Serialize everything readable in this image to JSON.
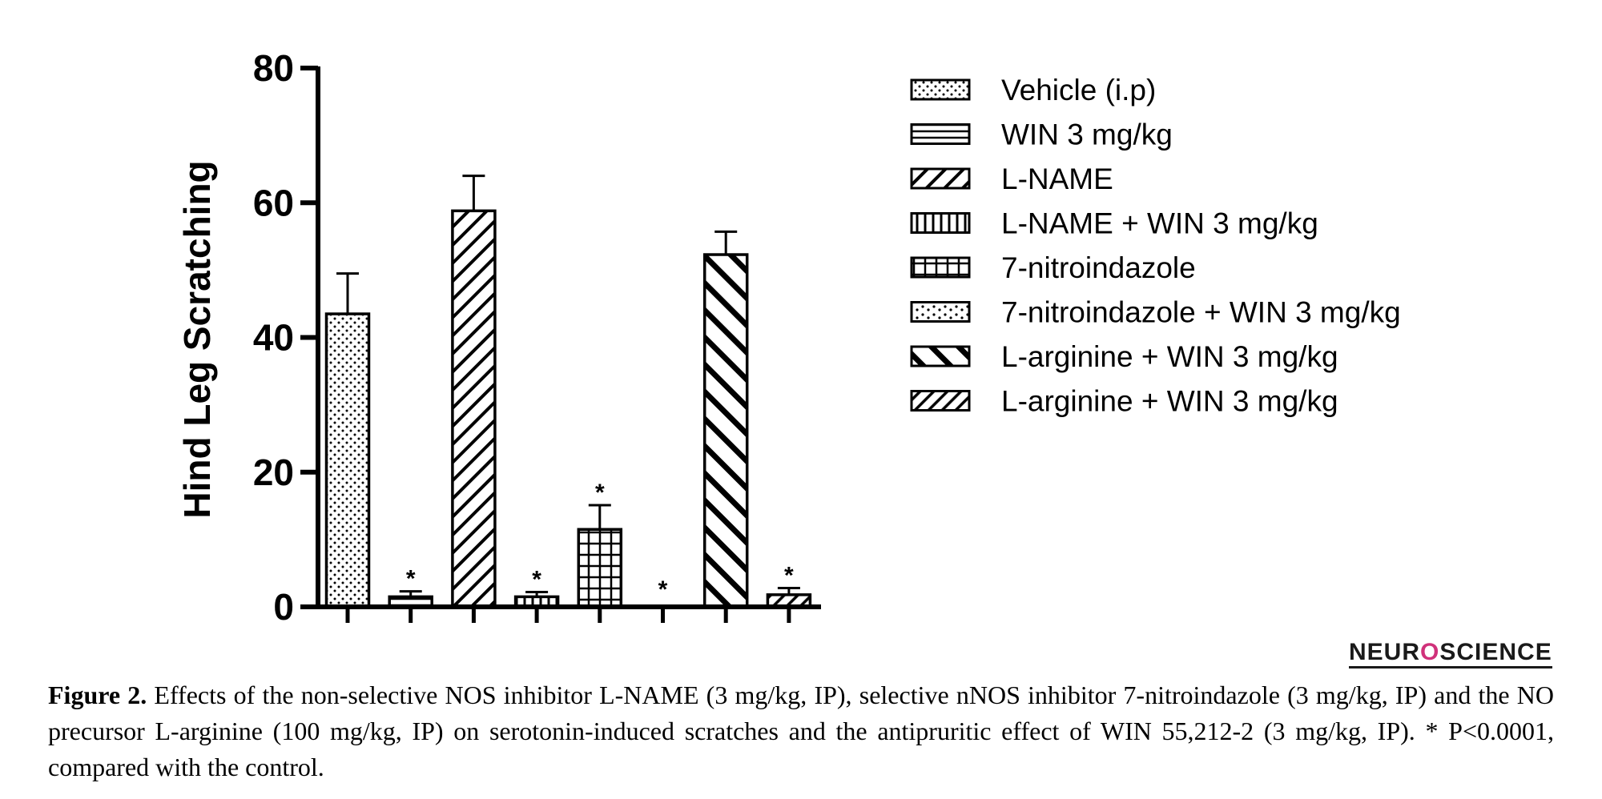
{
  "chart_data": {
    "type": "bar",
    "ylabel": "Hind Leg Scratching",
    "xlabel": "",
    "ylim": [
      0,
      80
    ],
    "yticks": [
      0,
      20,
      40,
      60,
      80
    ],
    "legend_position": "right",
    "grid": false,
    "series": [
      {
        "name": "Vehicle (i.p)",
        "value": 43.5,
        "error": 6.0,
        "pattern": "dots",
        "significant": false
      },
      {
        "name": "WIN 3 mg/kg",
        "value": 1.5,
        "error": 0.8,
        "pattern": "horizontal",
        "significant": true
      },
      {
        "name": "L-NAME",
        "value": 58.8,
        "error": 5.2,
        "pattern": "diag-right",
        "significant": false
      },
      {
        "name": "L-NAME + WIN 3 mg/kg",
        "value": 1.5,
        "error": 0.7,
        "pattern": "vertical",
        "significant": true
      },
      {
        "name": "7-nitroindazole",
        "value": 11.5,
        "error": 3.6,
        "pattern": "grid",
        "significant": true
      },
      {
        "name": "7-nitroindazole + WIN 3 mg/kg",
        "value": 0,
        "error": 0,
        "pattern": "sparse-dots",
        "significant": true
      },
      {
        "name": "L-arginine + WIN 3 mg/kg",
        "value": 52.3,
        "error": 3.4,
        "pattern": "diag-left",
        "significant": false
      },
      {
        "name": "L-arginine + WIN 3 mg/kg",
        "value": 1.8,
        "error": 1.0,
        "pattern": "diag-right-dense",
        "significant": true
      }
    ],
    "significance_marker": "*"
  },
  "logo": {
    "left": "NEUR",
    "mark": "O",
    "right": "SCIENCE"
  },
  "caption": {
    "label": "Figure 2.",
    "text": " Effects of the non-selective NOS inhibitor L-NAME (3 mg/kg, IP), selective nNOS inhibitor 7-nitroindazole (3 mg/kg, IP) and the NO precursor L-arginine (100 mg/kg, IP) on serotonin-induced scratches and the antipruritic effect of WIN 55,212-2 (3 mg/kg, IP). * P<0.0001, compared with the control."
  }
}
